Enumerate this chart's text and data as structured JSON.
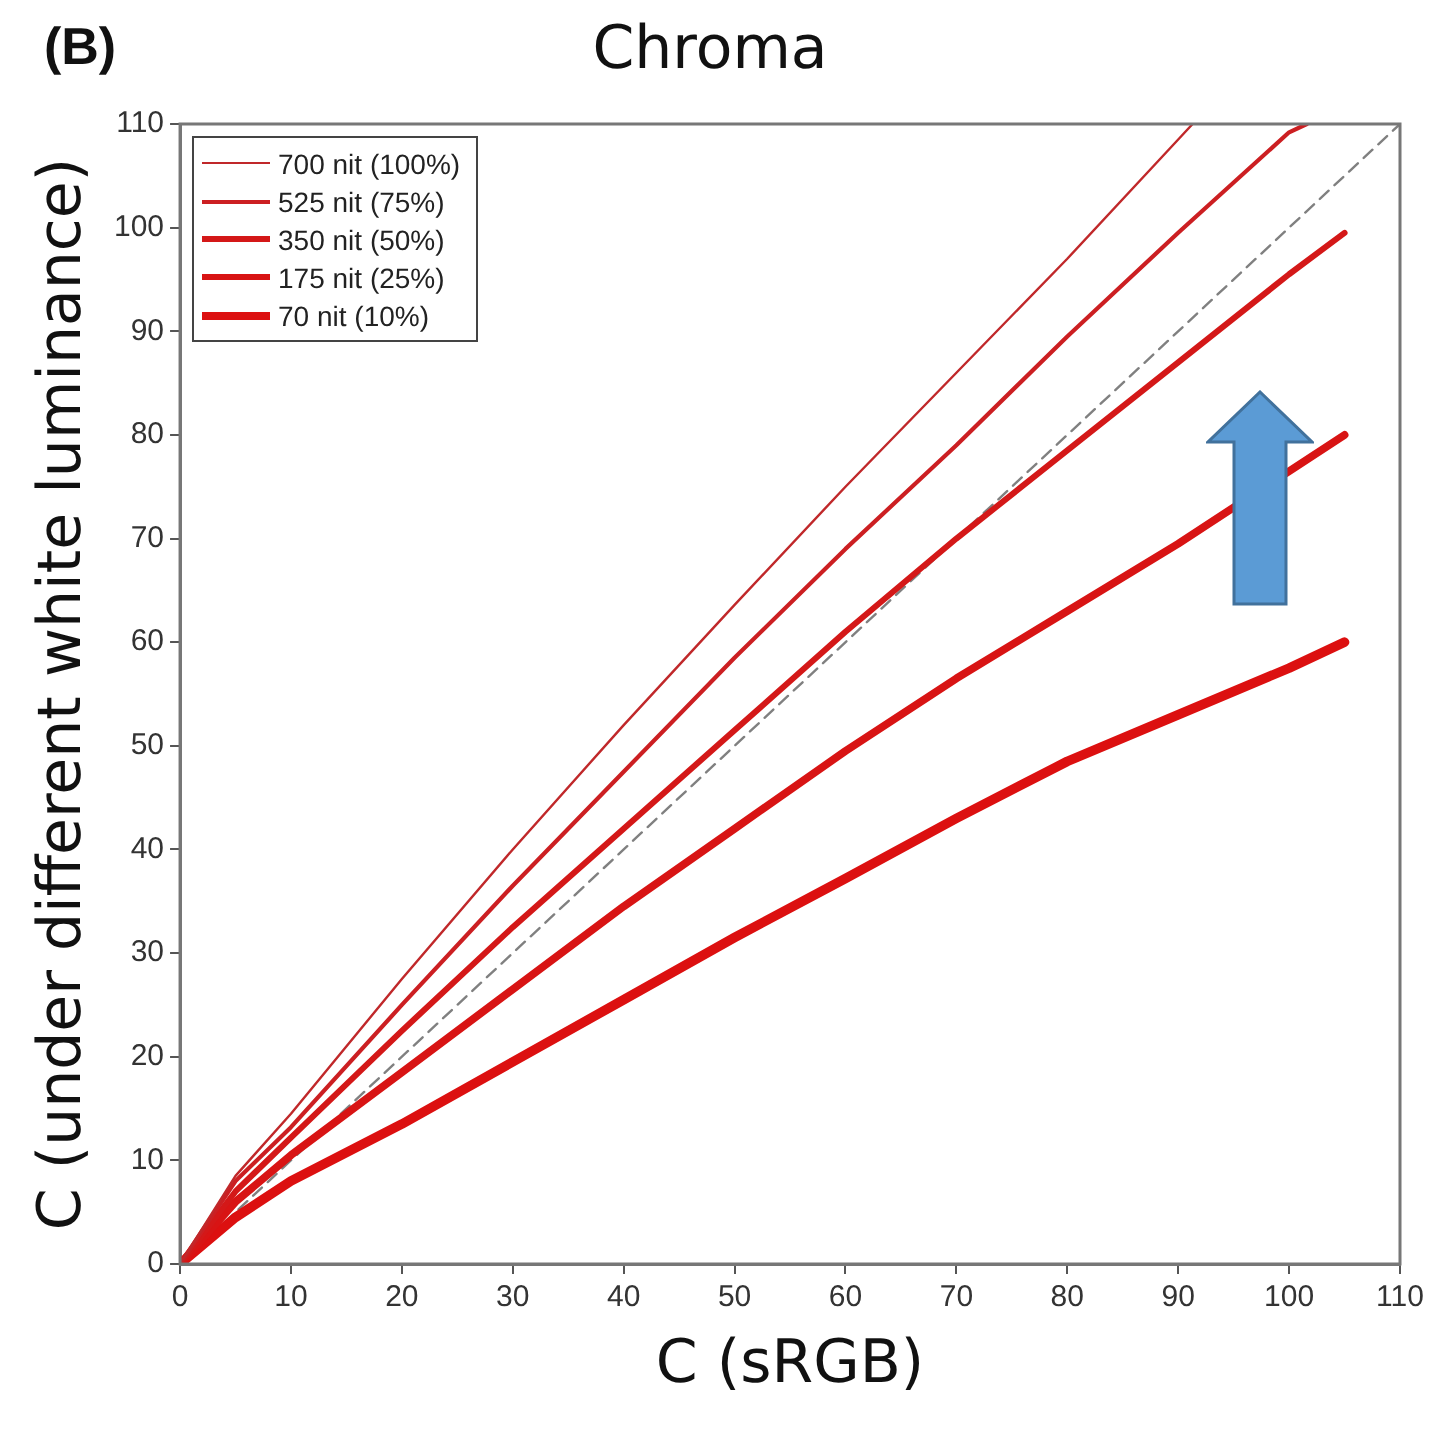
{
  "chart_data": {
    "type": "line",
    "title": "Chroma",
    "xlabel": "C (sRGB)",
    "ylabel": "C (under different white luminance)",
    "annotations": [
      "(B)"
    ],
    "x": [
      0,
      5,
      10,
      20,
      30,
      40,
      50,
      60,
      70,
      80,
      90,
      100,
      105
    ],
    "xlim": [
      0,
      110
    ],
    "ylim": [
      0,
      110
    ],
    "xticks": [
      0,
      10,
      20,
      30,
      40,
      50,
      60,
      70,
      80,
      90,
      100,
      110
    ],
    "yticks": [
      0,
      10,
      20,
      30,
      40,
      50,
      60,
      70,
      80,
      90,
      100,
      110
    ],
    "grid": false,
    "legend": "top left",
    "marker": "none",
    "line_style": "solid",
    "series": [
      {
        "name": "700 nit (100%)",
        "color": "#c0282a",
        "x": [
          0,
          5,
          10,
          20,
          30,
          40,
          50,
          60,
          70,
          80,
          90,
          91.3
        ],
        "values": [
          0,
          8.5,
          14.5,
          27.5,
          40,
          52,
          63.6,
          75,
          86,
          97,
          108.5,
          110
        ]
      },
      {
        "name": "525 nit (75%)",
        "color": "#cc1f22",
        "x": [
          0,
          5,
          10,
          20,
          30,
          40,
          50,
          60,
          70,
          80,
          90,
          100,
          101.6
        ],
        "values": [
          0,
          8,
          13.2,
          25,
          36.5,
          47.5,
          58.5,
          69,
          79,
          89.5,
          99.5,
          109.2,
          110
        ]
      },
      {
        "name": "350 nit (50%)",
        "color": "#d41818",
        "values": [
          0,
          7,
          12.2,
          22.5,
          32.5,
          42,
          51.5,
          61,
          70,
          78.5,
          87,
          95.5,
          99.5
        ]
      },
      {
        "name": "175 nit (25%)",
        "color": "#d81414",
        "values": [
          0,
          6,
          10.5,
          18.5,
          26.5,
          34.5,
          42,
          49.5,
          56.5,
          63,
          69.5,
          76.5,
          80
        ]
      },
      {
        "name": "70 nit (10%)",
        "color": "#dc1010",
        "values": [
          0,
          4.5,
          8,
          13.5,
          19.5,
          25.5,
          31.5,
          37.2,
          43,
          48.5,
          53,
          57.5,
          60
        ]
      },
      {
        "color": "#808080",
        "line_style": "dashed",
        "x": [
          0,
          110
        ],
        "values": [
          0,
          110
        ]
      }
    ]
  }
}
